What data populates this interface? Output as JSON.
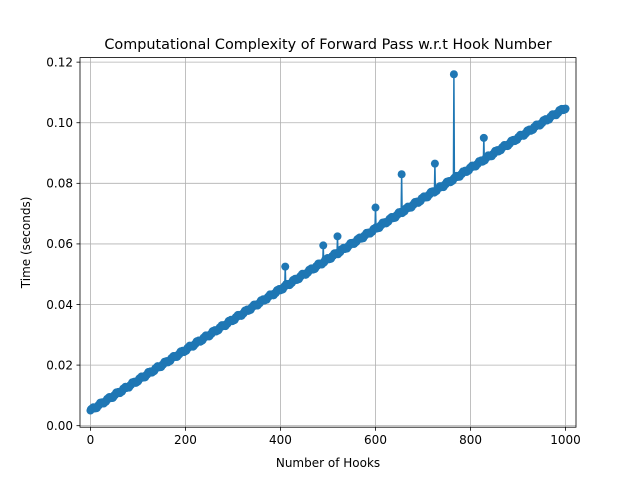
{
  "chart_data": {
    "type": "line",
    "title": "Computational Complexity of Forward Pass w.r.t Hook Number",
    "xlabel": "Number of Hooks",
    "ylabel": "Time (seconds)",
    "xlim": [
      -22,
      1022
    ],
    "ylim": [
      -0.0005,
      0.1215
    ],
    "xticks": [
      0,
      200,
      400,
      600,
      800,
      1000
    ],
    "xtick_labels": [
      "0",
      "200",
      "400",
      "600",
      "800",
      "1000"
    ],
    "yticks": [
      0.0,
      0.02,
      0.04,
      0.06,
      0.08,
      0.1,
      0.12
    ],
    "ytick_labels": [
      "0.00",
      "0.02",
      "0.04",
      "0.06",
      "0.08",
      "0.10",
      "0.12"
    ],
    "grid": true,
    "marker": "circle",
    "color": "#1f77b4",
    "trend": {
      "x_range": [
        0,
        1000
      ],
      "y_start": 0.005,
      "y_end": 0.105,
      "step": 1
    },
    "spikes": [
      {
        "x": 410,
        "y": 0.0525
      },
      {
        "x": 490,
        "y": 0.0595
      },
      {
        "x": 520,
        "y": 0.0625
      },
      {
        "x": 600,
        "y": 0.072
      },
      {
        "x": 655,
        "y": 0.083
      },
      {
        "x": 725,
        "y": 0.0865
      },
      {
        "x": 765,
        "y": 0.116
      },
      {
        "x": 828,
        "y": 0.095
      }
    ]
  }
}
